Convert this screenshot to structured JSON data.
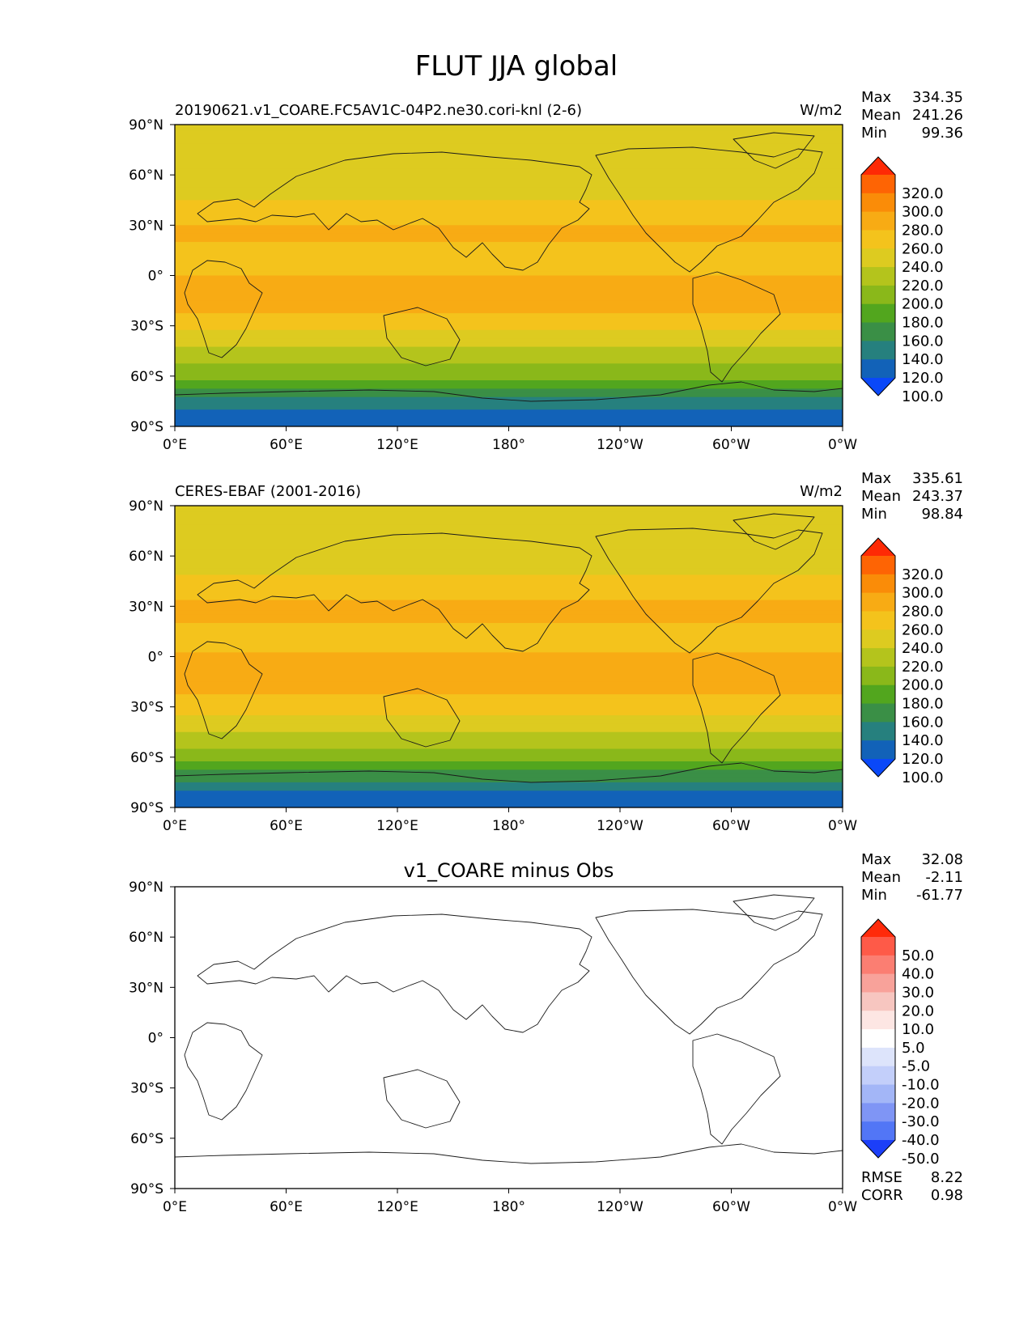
{
  "figure_title": "FLUT JJA global",
  "chart_data": [
    {
      "type": "heatmap",
      "left_title": "20190621.v1_COARE.FC5AV1C-04P2.ne30.cori-knl (2-6)",
      "center_title": "",
      "units": "W/m2",
      "stats": [
        {
          "label": "Max",
          "value": "334.35"
        },
        {
          "label": "Mean",
          "value": "241.26"
        },
        {
          "label": "Min",
          "value": "99.36"
        }
      ],
      "xticks": [
        "0°E",
        "60°E",
        "120°E",
        "180°",
        "120°W",
        "60°W",
        "0°W"
      ],
      "yticks": [
        "90°N",
        "60°N",
        "30°N",
        "0°",
        "30°S",
        "60°S",
        "90°S"
      ],
      "xlim": [
        0,
        360
      ],
      "ylim": [
        -90,
        90
      ],
      "colorbar": {
        "labels": [
          "320.0",
          "300.0",
          "280.0",
          "260.0",
          "240.0",
          "220.0",
          "200.0",
          "180.0",
          "160.0",
          "140.0",
          "120.0",
          "100.0"
        ],
        "colors": [
          "#fe2a05",
          "#fe6404",
          "#fa8c08",
          "#f8ab14",
          "#f4c31c",
          "#ddcb20",
          "#b4c41c",
          "#8ab81a",
          "#52a61e",
          "#3a8f46",
          "#26807e",
          "#1262b8",
          "#0a48f8"
        ]
      },
      "zonal_profile": [
        {
          "lat": 90,
          "value": 220
        },
        {
          "lat": 75,
          "value": 222
        },
        {
          "lat": 60,
          "value": 225
        },
        {
          "lat": 45,
          "value": 240
        },
        {
          "lat": 30,
          "value": 262
        },
        {
          "lat": 20,
          "value": 260
        },
        {
          "lat": 10,
          "value": 240
        },
        {
          "lat": 0,
          "value": 262
        },
        {
          "lat": -10,
          "value": 268
        },
        {
          "lat": -20,
          "value": 262
        },
        {
          "lat": -30,
          "value": 248
        },
        {
          "lat": -40,
          "value": 225
        },
        {
          "lat": -50,
          "value": 205
        },
        {
          "lat": -60,
          "value": 190
        },
        {
          "lat": -70,
          "value": 150
        },
        {
          "lat": -80,
          "value": 120
        },
        {
          "lat": -90,
          "value": 110
        }
      ],
      "rmse": null,
      "corr": null
    },
    {
      "type": "heatmap",
      "left_title": "CERES-EBAF (2001-2016)",
      "center_title": "",
      "units": "W/m2",
      "stats": [
        {
          "label": "Max",
          "value": "335.61"
        },
        {
          "label": "Mean",
          "value": "243.37"
        },
        {
          "label": "Min",
          "value": "98.84"
        }
      ],
      "xticks": [
        "0°E",
        "60°E",
        "120°E",
        "180°",
        "120°W",
        "60°W",
        "0°W"
      ],
      "yticks": [
        "90°N",
        "60°N",
        "30°N",
        "0°",
        "30°S",
        "60°S",
        "90°S"
      ],
      "xlim": [
        0,
        360
      ],
      "ylim": [
        -90,
        90
      ],
      "colorbar": {
        "labels": [
          "320.0",
          "300.0",
          "280.0",
          "260.0",
          "240.0",
          "220.0",
          "200.0",
          "180.0",
          "160.0",
          "140.0",
          "120.0",
          "100.0"
        ],
        "colors": [
          "#fe2a05",
          "#fe6404",
          "#fa8c08",
          "#f8ab14",
          "#f4c31c",
          "#ddcb20",
          "#b4c41c",
          "#8ab81a",
          "#52a61e",
          "#3a8f46",
          "#26807e",
          "#1262b8",
          "#0a48f8"
        ]
      },
      "zonal_profile": [
        {
          "lat": 90,
          "value": 222
        },
        {
          "lat": 75,
          "value": 224
        },
        {
          "lat": 60,
          "value": 228
        },
        {
          "lat": 45,
          "value": 242
        },
        {
          "lat": 30,
          "value": 264
        },
        {
          "lat": 20,
          "value": 262
        },
        {
          "lat": 10,
          "value": 242
        },
        {
          "lat": 0,
          "value": 264
        },
        {
          "lat": -10,
          "value": 270
        },
        {
          "lat": -20,
          "value": 264
        },
        {
          "lat": -30,
          "value": 250
        },
        {
          "lat": -40,
          "value": 228
        },
        {
          "lat": -50,
          "value": 208
        },
        {
          "lat": -60,
          "value": 192
        },
        {
          "lat": -70,
          "value": 152
        },
        {
          "lat": -80,
          "value": 120
        },
        {
          "lat": -90,
          "value": 110
        }
      ],
      "rmse": null,
      "corr": null
    },
    {
      "type": "heatmap",
      "left_title": "",
      "center_title": "v1_COARE minus Obs",
      "units": "",
      "stats": [
        {
          "label": "Max",
          "value": "32.08"
        },
        {
          "label": "Mean",
          "value": "-2.11"
        },
        {
          "label": "Min",
          "value": "-61.77"
        }
      ],
      "xticks": [
        "0°E",
        "60°E",
        "120°E",
        "180°",
        "120°W",
        "60°W",
        "0°W"
      ],
      "yticks": [
        "90°N",
        "60°N",
        "30°N",
        "0°",
        "30°S",
        "60°S",
        "90°S"
      ],
      "xlim": [
        0,
        360
      ],
      "ylim": [
        -90,
        90
      ],
      "colorbar": {
        "labels": [
          "50.0",
          "40.0",
          "30.0",
          "20.0",
          "10.0",
          "5.0",
          "-5.0",
          "-10.0",
          "-20.0",
          "-30.0",
          "-40.0",
          "-50.0"
        ],
        "colors": [
          "#ff2a0a",
          "#fe5a48",
          "#fb7e72",
          "#f8a29a",
          "#f7c6c0",
          "#fde6e3",
          "#ffffff",
          "#dde4fb",
          "#c3cffa",
          "#a3b6f7",
          "#7f95f5",
          "#5276f6",
          "#1c3ff8"
        ]
      },
      "zonal_profile": [
        {
          "lat": 90,
          "value": -4
        },
        {
          "lat": 75,
          "value": -4
        },
        {
          "lat": 60,
          "value": -3
        },
        {
          "lat": 45,
          "value": -2
        },
        {
          "lat": 30,
          "value": -1
        },
        {
          "lat": 20,
          "value": -2
        },
        {
          "lat": 10,
          "value": -2
        },
        {
          "lat": 0,
          "value": 0
        },
        {
          "lat": -10,
          "value": -1
        },
        {
          "lat": -20,
          "value": -3
        },
        {
          "lat": -30,
          "value": -4
        },
        {
          "lat": -40,
          "value": -3
        },
        {
          "lat": -50,
          "value": -2
        },
        {
          "lat": -60,
          "value": -1
        },
        {
          "lat": -70,
          "value": 3
        },
        {
          "lat": -80,
          "value": 1
        },
        {
          "lat": -90,
          "value": 0
        }
      ],
      "rmse": {
        "label": "RMSE",
        "value": "8.22"
      },
      "corr": {
        "label": "CORR",
        "value": "0.98"
      }
    }
  ]
}
